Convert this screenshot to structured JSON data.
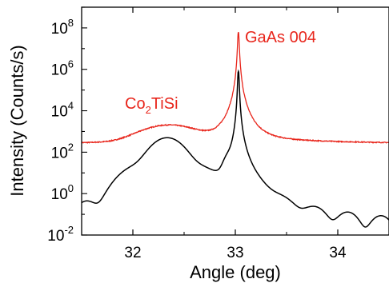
{
  "chart_data": {
    "type": "line",
    "title": "",
    "xlabel": "Angle (deg)",
    "ylabel": "Intensity (Counts/s)",
    "xlim": [
      31.5,
      34.5
    ],
    "ylim": [
      0.01,
      1000000000
    ],
    "yscale": "log",
    "grid": false,
    "x_ticks": [
      32,
      33,
      34
    ],
    "x_tick_labels": [
      "32",
      "33",
      "34"
    ],
    "y_ticks": [
      {
        "value": 0.01,
        "base": "10",
        "exp": "-2"
      },
      {
        "value": 1,
        "base": "10",
        "exp": "0"
      },
      {
        "value": 100,
        "base": "10",
        "exp": "2"
      },
      {
        "value": 10000,
        "base": "10",
        "exp": "4"
      },
      {
        "value": 1000000,
        "base": "10",
        "exp": "6"
      },
      {
        "value": 100000000,
        "base": "10",
        "exp": "8"
      }
    ],
    "colors": {
      "measured": "#e8261c",
      "simulated": "#000000"
    },
    "annotations": [
      {
        "id": "gaas",
        "text": "GaAs 004",
        "x": 33.06,
        "y": 30000000,
        "color": "#e8261c"
      },
      {
        "id": "co2tisi",
        "text_main": "Co",
        "text_sub": "2",
        "text_rest": "TiSi",
        "x": 31.95,
        "y": 8000,
        "color": "#e8261c"
      }
    ],
    "series": [
      {
        "id": "measured",
        "color": "#e8261c",
        "model": {
          "background": 250,
          "hump_center": 32.35,
          "hump_amp": 1700,
          "hump_width": 0.3,
          "peak_center": 33.03,
          "peak_amp": 60000000,
          "peak_core": 0.006,
          "peak_tail": 4.1,
          "noise": 0.1
        }
      },
      {
        "id": "simulated",
        "color": "#000000",
        "model": {
          "center": 32.335,
          "envelope_width": 0.28,
          "envelope_amp": 500,
          "fringe_period": 0.322,
          "fringe_floor": 0.006,
          "fringe_tail": 9,
          "peak_center": 33.03,
          "peak_amp": 800000,
          "peak_core": 0.006,
          "peak_tail": 3.3,
          "shoulder_center": 32.93,
          "shoulder_amp": 35,
          "shoulder_width": 0.05
        }
      }
    ]
  }
}
